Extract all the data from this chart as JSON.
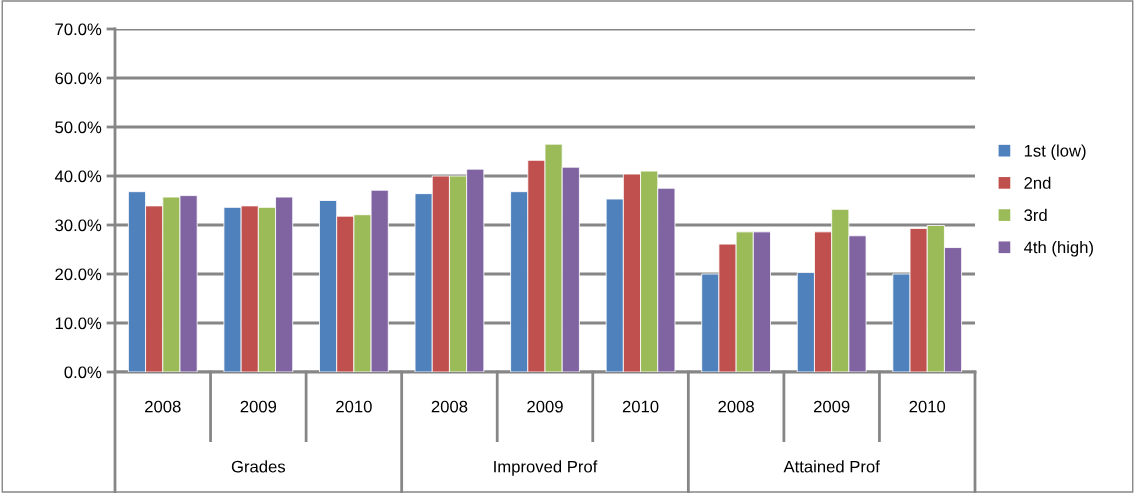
{
  "chart_data": {
    "type": "bar",
    "categories": [
      "2008",
      "2009",
      "2010",
      "2008",
      "2009",
      "2010",
      "2008",
      "2009",
      "2010"
    ],
    "annotations": [
      "Grades",
      "Improved Prof",
      "Attained Prof"
    ],
    "series": [
      {
        "name": "1st (low)",
        "color": "#4f81bd",
        "values": [
          36.8,
          33.6,
          35.0,
          36.4,
          36.8,
          35.3,
          20.0,
          20.3,
          20.0
        ]
      },
      {
        "name": "2nd",
        "color": "#c0504d",
        "values": [
          33.9,
          33.9,
          31.8,
          40.0,
          43.2,
          40.4,
          26.1,
          28.6,
          29.3
        ]
      },
      {
        "name": "3rd",
        "color": "#9bbb59",
        "values": [
          35.7,
          33.6,
          32.1,
          40.0,
          46.5,
          41.0,
          28.6,
          33.2,
          29.9
        ]
      },
      {
        "name": "4th (high)",
        "color": "#8064a2",
        "values": [
          36.0,
          35.7,
          37.1,
          41.4,
          41.8,
          37.5,
          28.6,
          27.8,
          25.4
        ]
      }
    ],
    "ylim": [
      0,
      70
    ],
    "yticks": [
      {
        "value": 0,
        "label": "0.0%"
      },
      {
        "value": 10,
        "label": "10.0%"
      },
      {
        "value": 20,
        "label": "20.0%"
      },
      {
        "value": 30,
        "label": "30.0%"
      },
      {
        "value": 40,
        "label": "40.0%"
      },
      {
        "value": 50,
        "label": "50.0%"
      },
      {
        "value": 60,
        "label": "60.0%"
      },
      {
        "value": 70,
        "label": "70.0%"
      }
    ],
    "grid": "y",
    "legend": "right"
  }
}
